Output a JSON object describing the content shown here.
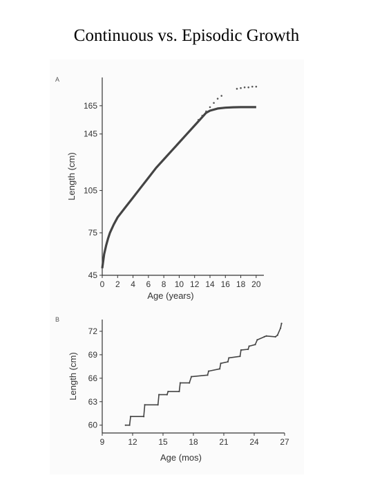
{
  "slide": {
    "title": "Continuous vs. Episodic Growth"
  },
  "chart_data": [
    {
      "panel": "A",
      "type": "line",
      "xlabel": "Age (years)",
      "ylabel": "Length (cm)",
      "xlim": [
        0,
        21
      ],
      "ylim": [
        45,
        185
      ],
      "xticks": [
        "0",
        "2",
        "4",
        "6",
        "8",
        "10",
        "12",
        "14",
        "16",
        "18",
        "20"
      ],
      "yticks": [
        "45",
        "75",
        "105",
        "145",
        "165"
      ],
      "series": [
        {
          "style": "solid",
          "x": [
            0,
            0.25,
            0.5,
            0.75,
            1,
            1.5,
            2,
            3,
            4,
            5,
            6,
            7,
            8,
            9,
            10,
            11,
            12,
            13,
            13.5,
            14,
            15,
            16,
            17,
            18,
            19,
            20
          ],
          "y": [
            50,
            60,
            66,
            71,
            75,
            81,
            86,
            93,
            100,
            107,
            114,
            121,
            127,
            133,
            139,
            145,
            151,
            157,
            160,
            161.5,
            163,
            163.6,
            163.9,
            164,
            164,
            164
          ]
        },
        {
          "style": "dotted",
          "x": [
            12.5,
            13,
            13.5,
            14,
            14.5,
            15,
            15.5,
            17.5,
            18,
            18.5,
            19,
            19.5,
            20
          ],
          "y": [
            155,
            158,
            161,
            164,
            167,
            170,
            172,
            177,
            177.5,
            178,
            178,
            178.5,
            178.5
          ]
        }
      ]
    },
    {
      "panel": "B",
      "type": "line",
      "xlabel": "Age (mos)",
      "ylabel": "Length (cm)",
      "xlim": [
        9,
        27
      ],
      "ylim": [
        59,
        73.5
      ],
      "xticks": [
        "9",
        "12",
        "15",
        "18",
        "21",
        "24",
        "27"
      ],
      "yticks": [
        "60",
        "63",
        "66",
        "69",
        "72"
      ],
      "series": [
        {
          "style": "steps",
          "x": [
            11.3,
            11.7,
            11.8,
            13.1,
            13.2,
            14.5,
            14.6,
            15.4,
            15.5,
            16.6,
            16.7,
            17.6,
            17.8,
            19.4,
            19.5,
            20.6,
            20.7,
            21.4,
            21.5,
            22.6,
            22.7,
            23.4,
            23.5,
            24.1,
            24.3,
            25.0,
            25.2,
            26.1,
            26.3,
            26.6,
            26.7
          ],
          "y": [
            60.0,
            60.0,
            61.1,
            61.1,
            62.6,
            62.6,
            63.9,
            63.9,
            64.3,
            64.3,
            65.4,
            65.4,
            66.2,
            66.4,
            66.9,
            67.2,
            67.9,
            68.1,
            68.6,
            68.8,
            69.6,
            69.7,
            70.1,
            70.3,
            70.9,
            71.3,
            71.4,
            71.3,
            71.5,
            72.4,
            73.0
          ]
        }
      ]
    }
  ]
}
